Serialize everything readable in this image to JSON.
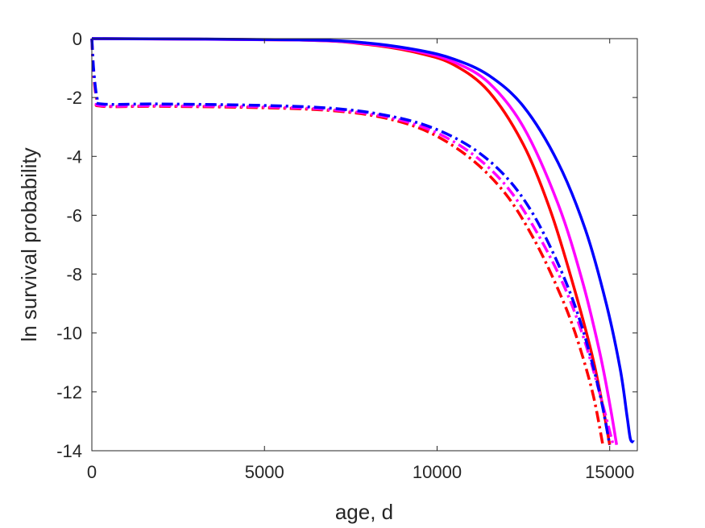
{
  "chart_data": {
    "type": "line",
    "xlabel": "age, d",
    "ylabel": "ln survival probability",
    "xlim": [
      0,
      15800
    ],
    "ylim": [
      -14,
      0
    ],
    "xticks": [
      0,
      5000,
      10000,
      15000
    ],
    "xtick_labels": [
      "0",
      "5000",
      "10000",
      "15000"
    ],
    "yticks": [
      0,
      -2,
      -4,
      -6,
      -8,
      -10,
      -12,
      -14
    ],
    "ytick_labels": [
      "0",
      "-2",
      "-4",
      "-6",
      "-8",
      "-10",
      "-12",
      "-14"
    ],
    "grid": false,
    "colors": {
      "red": "#ff0000",
      "magenta": "#ff00ff",
      "blue": "#0000ff",
      "axis": "#262626"
    },
    "series": [
      {
        "color": "#ff0000",
        "dash": "solid",
        "x": [
          0,
          6000,
          8000,
          9500,
          10500,
          11500,
          12500,
          13300,
          14000,
          14500,
          14800,
          15000
        ],
        "y": [
          0,
          -0.05,
          -0.2,
          -0.5,
          -0.9,
          -1.8,
          -3.6,
          -5.9,
          -8.6,
          -10.8,
          -12.5,
          -13.8
        ]
      },
      {
        "color": "#ff00ff",
        "dash": "solid",
        "x": [
          0,
          6000,
          8000,
          9500,
          10500,
          11500,
          12500,
          13500,
          14200,
          14700,
          15000,
          15200
        ],
        "y": [
          0,
          -0.05,
          -0.18,
          -0.45,
          -0.8,
          -1.5,
          -3.0,
          -5.6,
          -8.2,
          -10.6,
          -12.4,
          -13.8
        ]
      },
      {
        "color": "#0000ff",
        "dash": "solid",
        "x": [
          0,
          6000,
          8000,
          9500,
          10500,
          11500,
          12500,
          13500,
          14300,
          14900,
          15300,
          15500,
          15600,
          15700
        ],
        "y": [
          0,
          -0.04,
          -0.15,
          -0.4,
          -0.7,
          -1.25,
          -2.3,
          -4.2,
          -6.5,
          -9.0,
          -11.2,
          -12.8,
          -13.6,
          -13.7
        ]
      },
      {
        "color": "#ff0000",
        "dash": "dashdot",
        "x": [
          0,
          50,
          150,
          300,
          2000,
          5000,
          7000,
          8500,
          9800,
          11000,
          12000,
          12800,
          13500,
          14000,
          14500,
          14800
        ],
        "y": [
          0,
          -1.2,
          -2.1,
          -2.3,
          -2.3,
          -2.35,
          -2.45,
          -2.7,
          -3.2,
          -4.1,
          -5.3,
          -6.8,
          -8.5,
          -10.0,
          -12.0,
          -13.8
        ]
      },
      {
        "color": "#ff00ff",
        "dash": "dashdot",
        "x": [
          0,
          50,
          150,
          300,
          2000,
          5000,
          7000,
          8500,
          9800,
          11000,
          12000,
          12800,
          13600,
          14200,
          14700,
          15100
        ],
        "y": [
          0,
          -1.1,
          -2.05,
          -2.28,
          -2.28,
          -2.32,
          -2.42,
          -2.65,
          -3.1,
          -3.9,
          -5.0,
          -6.4,
          -8.2,
          -10.0,
          -12.0,
          -13.8
        ]
      },
      {
        "color": "#0000ff",
        "dash": "dashdot",
        "x": [
          0,
          50,
          150,
          300,
          2000,
          5000,
          7000,
          8500,
          9800,
          11000,
          12000,
          12800,
          13600,
          14200,
          14700,
          15000
        ],
        "y": [
          0,
          -1.0,
          -2.0,
          -2.22,
          -2.22,
          -2.27,
          -2.37,
          -2.6,
          -3.0,
          -3.7,
          -4.7,
          -6.0,
          -7.9,
          -9.8,
          -12.0,
          -13.8
        ]
      }
    ]
  }
}
